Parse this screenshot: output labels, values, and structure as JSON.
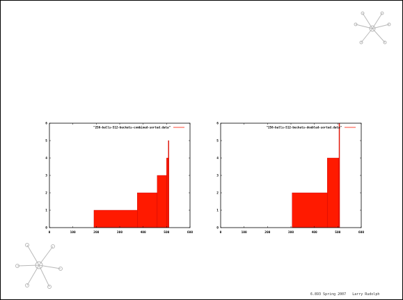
{
  "footer": {
    "text": "6.893 Spring 2007   Larry Rudolph"
  },
  "decorations": [
    {
      "icon": "starfish-icon",
      "color": "#b8b8b8"
    },
    {
      "icon": "starfish-icon",
      "color": "#b8b8b8"
    }
  ],
  "chart_data": [
    {
      "type": "area",
      "legend": "\"256-balls-512-buckets-combined-sorted.data\"",
      "legend_position": "top-right",
      "series_color": "#ff1a00",
      "xlim": [
        0,
        600
      ],
      "ylim": [
        0,
        6
      ],
      "xticks": [
        "0",
        "100",
        "200",
        "300",
        "400",
        "500",
        "600"
      ],
      "yticks": [
        "0",
        "1",
        "2",
        "3",
        "4",
        "5",
        "6"
      ],
      "grid": false,
      "steps": [
        {
          "x0": 190,
          "x1": 375,
          "y": 1
        },
        {
          "x0": 375,
          "x1": 460,
          "y": 2
        },
        {
          "x0": 460,
          "x1": 500,
          "y": 3
        },
        {
          "x0": 500,
          "x1": 507,
          "y": 4
        },
        {
          "x0": 507,
          "x1": 510,
          "y": 5
        }
      ]
    },
    {
      "type": "area",
      "legend": "\"256-balls-512-buckets-doubled-sorted.data\"",
      "legend_position": "top-right",
      "series_color": "#ff1a00",
      "xlim": [
        0,
        600
      ],
      "ylim": [
        0,
        6
      ],
      "xticks": [
        "0",
        "100",
        "200",
        "300",
        "400",
        "500",
        "600"
      ],
      "yticks": [
        "0",
        "1",
        "2",
        "3",
        "4",
        "5",
        "6"
      ],
      "grid": false,
      "steps": [
        {
          "x0": 305,
          "x1": 455,
          "y": 2
        },
        {
          "x0": 455,
          "x1": 505,
          "y": 4
        },
        {
          "x0": 505,
          "x1": 508,
          "y": 6
        }
      ]
    }
  ]
}
